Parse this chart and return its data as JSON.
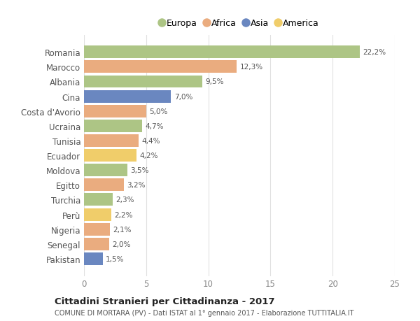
{
  "categories": [
    "Romania",
    "Marocco",
    "Albania",
    "Cina",
    "Costa d'Avorio",
    "Ucraina",
    "Tunisia",
    "Ecuador",
    "Moldova",
    "Egitto",
    "Turchia",
    "Perù",
    "Nigeria",
    "Senegal",
    "Pakistan"
  ],
  "values": [
    22.2,
    12.3,
    9.5,
    7.0,
    5.0,
    4.7,
    4.4,
    4.2,
    3.5,
    3.2,
    2.3,
    2.2,
    2.1,
    2.0,
    1.5
  ],
  "labels": [
    "22,2%",
    "12,3%",
    "9,5%",
    "7,0%",
    "5,0%",
    "4,7%",
    "4,4%",
    "4,2%",
    "3,5%",
    "3,2%",
    "2,3%",
    "2,2%",
    "2,1%",
    "2,0%",
    "1,5%"
  ],
  "colors": [
    "#adc585",
    "#eaac7f",
    "#adc585",
    "#6a87c0",
    "#eaac7f",
    "#adc585",
    "#eaac7f",
    "#f0cd6a",
    "#adc585",
    "#eaac7f",
    "#adc585",
    "#f0cd6a",
    "#eaac7f",
    "#eaac7f",
    "#6a87c0"
  ],
  "continent_colors": {
    "Europa": "#adc585",
    "Africa": "#eaac7f",
    "Asia": "#6a87c0",
    "America": "#f0cd6a"
  },
  "legend_labels": [
    "Europa",
    "Africa",
    "Asia",
    "America"
  ],
  "xlim": [
    0,
    25
  ],
  "xticks": [
    0,
    5,
    10,
    15,
    20,
    25
  ],
  "title": "Cittadini Stranieri per Cittadinanza - 2017",
  "subtitle": "COMUNE DI MORTARA (PV) - Dati ISTAT al 1° gennaio 2017 - Elaborazione TUTTITALIA.IT",
  "background_color": "#ffffff",
  "grid_color": "#e0e0e0",
  "bar_height": 0.85
}
